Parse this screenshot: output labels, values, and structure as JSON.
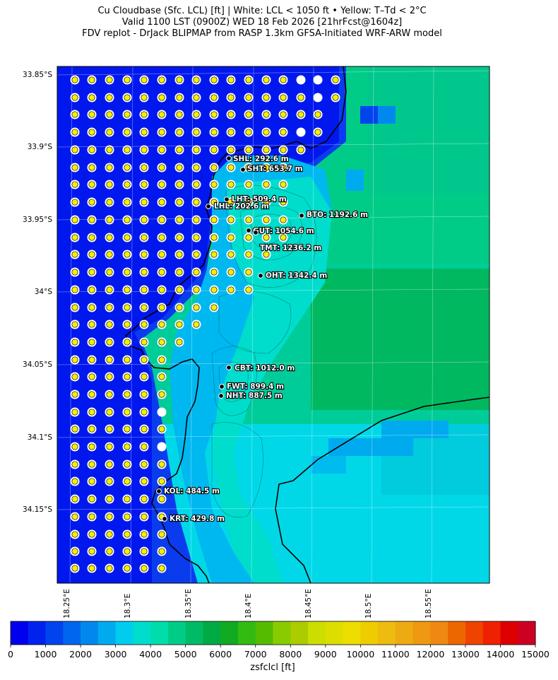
{
  "header": {
    "line1": "Cu Cloudbase (Sfc. LCL) [ft]  |  White: LCL < 1050 ft • Yellow: T–Td < 2°C",
    "line2": "Valid 1100 LST (0900Z) WED 18 Feb 2026 [21hrFcst@1604z]",
    "line3": "FDV replot - DrJack BLIPMAP from RASP 1.3km GFSA-Initiated WRF-ARW model"
  },
  "axes": {
    "lat_labels": [
      "33.85°S",
      "33.9°S",
      "33.95°S",
      "34°S",
      "34.05°S",
      "34.1°S",
      "34.15°S"
    ],
    "lon_labels": [
      "18.25°E",
      "18.3°E",
      "18.35°E",
      "18.4°E",
      "18.45°E",
      "18.5°E",
      "18.55°E"
    ]
  },
  "sites": [
    {
      "label": "SHL: 292.6 m"
    },
    {
      "label": "SHT: 653.7 m"
    },
    {
      "label": "LHT: 509.4 m"
    },
    {
      "label": "LHL: 202.6 m"
    },
    {
      "label": "BTO: 1192.6 m"
    },
    {
      "label": "GUT: 1054.6 m"
    },
    {
      "label": "TMT: 1236.2 m"
    },
    {
      "label": "OHT: 1342.4 m"
    },
    {
      "label": "CBT: 1012.0 m"
    },
    {
      "label": "FWT: 899.4 m"
    },
    {
      "label": "NHT: 887.5 m"
    },
    {
      "label": "KOL: 484.5 m"
    },
    {
      "label": "KRT: 429.8 m"
    }
  ],
  "colorbar": {
    "title": "zsfclcl [ft]",
    "ticks": [
      "0",
      "1000",
      "2000",
      "3000",
      "4000",
      "5000",
      "6000",
      "7000",
      "8000",
      "9000",
      "10000",
      "11000",
      "12000",
      "13000",
      "14000",
      "15000"
    ],
    "min": 0,
    "max": 15000,
    "colors": [
      "#0000ee",
      "#0022ee",
      "#0044ee",
      "#0066ee",
      "#0088ee",
      "#00aaee",
      "#00ccee",
      "#00ddcc",
      "#00ddaa",
      "#00cc88",
      "#00bb66",
      "#00aa44",
      "#11aa22",
      "#33bb11",
      "#55bb00",
      "#88cc00",
      "#aacc00",
      "#ccdd00",
      "#dddd00",
      "#eedd00",
      "#eecc00",
      "#eebb11",
      "#eeaa11",
      "#ee9911",
      "#ee8811",
      "#ee6600",
      "#ee4400",
      "#ee2200",
      "#dd0000",
      "#cc0022"
    ]
  }
}
